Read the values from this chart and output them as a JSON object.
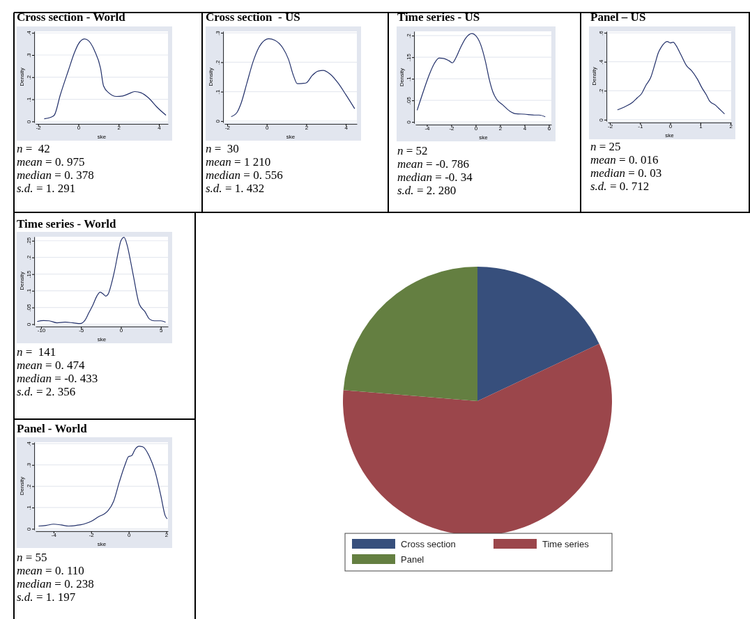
{
  "chart_data": [
    {
      "type": "line",
      "title": "Cross section - World",
      "xlabel": "ske",
      "ylabel": "Density",
      "color": "#22306a",
      "grid": "y",
      "xlim": [
        -2.13,
        4.45
      ],
      "ylim": [
        -0.005,
        0.407
      ],
      "xticks": [
        {
          "value": -2,
          "label": "-2"
        },
        0,
        2,
        4
      ],
      "yticks": [
        {
          "value": 0,
          "label": "0"
        },
        {
          "value": 0.1,
          "label": ".1"
        },
        {
          "value": 0.2,
          "label": ".2"
        },
        {
          "value": 0.3,
          "label": ".3"
        },
        {
          "value": 0.4,
          "label": ".4"
        }
      ],
      "x": [
        -1.7,
        -1.4,
        -1.2,
        -0.9,
        -0.5,
        -0.2,
        0,
        0.3,
        0.5,
        0.8,
        1.1,
        1.25,
        1.5,
        1.9,
        2.2,
        2.5,
        2.8,
        3.1,
        3.5,
        3.9,
        4.35
      ],
      "values": [
        0.012,
        0.018,
        0.028,
        0.12,
        0.23,
        0.31,
        0.35,
        0.373,
        0.365,
        0.32,
        0.24,
        0.16,
        0.13,
        0.113,
        0.115,
        0.125,
        0.135,
        0.13,
        0.105,
        0.065,
        0.028
      ],
      "annotations": [
        "n =  42",
        "mean = 0. 975",
        "median = 0. 378",
        "s.d. = 1. 291"
      ]
    },
    {
      "type": "line",
      "title": "Cross section  - US",
      "xlabel": "ske",
      "ylabel": "Density",
      "color": "#22306a",
      "grid": "y",
      "xlim": [
        -2.14,
        4.56
      ],
      "ylim": [
        -0.005,
        0.305
      ],
      "xticks": [
        {
          "value": -2,
          "label": "-2"
        },
        0,
        2,
        4
      ],
      "yticks": [
        {
          "value": 0,
          "label": "0"
        },
        {
          "value": 0.1,
          "label": ".1"
        },
        {
          "value": 0.2,
          "label": ".2"
        },
        {
          "value": 0.3,
          "label": ".3"
        }
      ],
      "x": [
        -1.8,
        -1.5,
        -1.3,
        -1,
        -0.7,
        -0.4,
        -0.1,
        0.1,
        0.4,
        0.8,
        1.1,
        1.35,
        1.55,
        1.8,
        2.0,
        2.3,
        2.6,
        2.85,
        3.2,
        3.6,
        4.0,
        4.45
      ],
      "values": [
        0.015,
        0.03,
        0.06,
        0.13,
        0.2,
        0.25,
        0.275,
        0.28,
        0.275,
        0.25,
        0.21,
        0.155,
        0.127,
        0.128,
        0.13,
        0.155,
        0.17,
        0.172,
        0.16,
        0.13,
        0.09,
        0.042
      ],
      "annotations": [
        "n =  30",
        "mean = 1 210",
        "median = 0. 556",
        "s.d. = 1. 432"
      ]
    },
    {
      "type": "line",
      "title": "Time series - US",
      "xlabel": "ske",
      "ylabel": "Density",
      "color": "#22306a",
      "grid": "y",
      "xlim": [
        -4.94,
        6.2
      ],
      "ylim": [
        -0.003,
        0.21
      ],
      "xticks": [
        {
          "value": -4,
          "label": "-4"
        },
        {
          "value": -2,
          "label": "-2"
        },
        0,
        2,
        4,
        6
      ],
      "yticks": [
        {
          "value": 0,
          "label": "0"
        },
        {
          "value": 0.05,
          "label": ".05"
        },
        {
          "value": 0.1,
          "label": ".1"
        },
        {
          "value": 0.15,
          "label": ".15"
        },
        {
          "value": 0.2,
          "label": ".2"
        }
      ],
      "x": [
        -4.8,
        -4.3,
        -3.8,
        -3.4,
        -3.0,
        -2.6,
        -2.2,
        -1.9,
        -1.6,
        -1.2,
        -0.8,
        -0.3,
        0,
        0.4,
        0.8,
        1.1,
        1.4,
        1.7,
        2.2,
        2.8,
        3.3,
        4,
        4.8,
        5.2,
        5.7
      ],
      "values": [
        0.027,
        0.07,
        0.11,
        0.135,
        0.148,
        0.147,
        0.142,
        0.137,
        0.15,
        0.175,
        0.195,
        0.205,
        0.2,
        0.18,
        0.14,
        0.1,
        0.07,
        0.053,
        0.04,
        0.025,
        0.019,
        0.018,
        0.016,
        0.016,
        0.012
      ],
      "annotations": [
        "n = 52",
        "mean = -0. 786",
        "median = -0. 34",
        "s.d. = 2. 280"
      ]
    },
    {
      "type": "line",
      "title": "Panel – US",
      "xlabel": "ske",
      "ylabel": "Density",
      "color": "#22306a",
      "grid": "y",
      "xlim": [
        -2.07,
        2.02
      ],
      "ylim": [
        -0.01,
        0.61
      ],
      "xticks": [
        {
          "value": -2,
          "label": "-2"
        },
        {
          "value": -1,
          "label": "-1"
        },
        0,
        1,
        2
      ],
      "yticks": [
        {
          "value": 0,
          "label": "0"
        },
        {
          "value": 0.2,
          "label": ".2"
        },
        {
          "value": 0.4,
          "label": ".4"
        },
        {
          "value": 0.6,
          "label": ".6"
        }
      ],
      "x": [
        -1.75,
        -1.5,
        -1.25,
        -1.1,
        -0.95,
        -0.8,
        -0.65,
        -0.5,
        -0.4,
        -0.3,
        -0.1,
        0,
        0.1,
        0.2,
        0.35,
        0.55,
        0.7,
        0.9,
        1.05,
        1.2,
        1.3,
        1.5,
        1.6,
        1.8
      ],
      "values": [
        0.068,
        0.09,
        0.12,
        0.15,
        0.18,
        0.24,
        0.29,
        0.39,
        0.46,
        0.5,
        0.54,
        0.53,
        0.535,
        0.51,
        0.45,
        0.37,
        0.34,
        0.28,
        0.22,
        0.17,
        0.13,
        0.1,
        0.08,
        0.04
      ],
      "annotations": [
        "n = 25",
        "mean = 0. 016",
        "median = 0. 03",
        "s.d. = 0. 712"
      ]
    },
    {
      "type": "line",
      "title": "Time series - World",
      "xlabel": "ske",
      "ylabel": "Density",
      "color": "#22306a",
      "grid": "y",
      "xlim": [
        -10.7,
        5.9
      ],
      "ylim": [
        -0.003,
        0.262
      ],
      "xticks": [
        {
          "value": -10,
          "label": "-10"
        },
        {
          "value": -5,
          "label": "-5"
        },
        0,
        5
      ],
      "yticks": [
        {
          "value": 0,
          "label": "0"
        },
        {
          "value": 0.05,
          "label": ".05"
        },
        {
          "value": 0.1,
          "label": ".1"
        },
        {
          "value": 0.15,
          "label": ".15"
        },
        {
          "value": 0.2,
          "label": ".2"
        },
        {
          "value": 0.25,
          "label": ".25"
        }
      ],
      "x": [
        -10.5,
        -9.7,
        -9,
        -8,
        -7,
        -6,
        -5.1,
        -4.5,
        -4,
        -3.5,
        -3,
        -2.6,
        -2.2,
        -1.9,
        -1.6,
        -1.2,
        -0.8,
        -0.3,
        0,
        0.4,
        0.8,
        1.2,
        1.6,
        2.3,
        3,
        3.6,
        4.2,
        5,
        5.6
      ],
      "values": [
        0.008,
        0.011,
        0.01,
        0.004,
        0.006,
        0.004,
        0.002,
        0.012,
        0.035,
        0.058,
        0.085,
        0.096,
        0.09,
        0.084,
        0.09,
        0.12,
        0.16,
        0.22,
        0.25,
        0.26,
        0.235,
        0.19,
        0.14,
        0.06,
        0.038,
        0.015,
        0.01,
        0.01,
        0.006
      ],
      "annotations": [
        "n =  141",
        "mean = 0. 474",
        "median = -0. 433",
        "s.d. = 2. 356"
      ]
    },
    {
      "type": "line",
      "title": "Panel - World",
      "xlabel": "ske",
      "ylabel": "Density",
      "color": "#22306a",
      "grid": "y",
      "xlim": [
        -4.96,
        2.09
      ],
      "ylim": [
        -0.005,
        0.407
      ],
      "xticks": [
        {
          "value": -4,
          "label": "-4"
        },
        {
          "value": -2,
          "label": "-2"
        },
        0,
        2
      ],
      "yticks": [
        {
          "value": 0,
          "label": "0"
        },
        {
          "value": 0.1,
          "label": ".1"
        },
        {
          "value": 0.2,
          "label": ".2"
        },
        {
          "value": 0.3,
          "label": ".3"
        },
        {
          "value": 0.4,
          "label": ".4"
        }
      ],
      "x": [
        -4.8,
        -4.4,
        -4,
        -3.6,
        -3.2,
        -2.8,
        -2.4,
        -2,
        -1.6,
        -1.3,
        -1.1,
        -0.8,
        -0.5,
        -0.2,
        0,
        0.15,
        0.35,
        0.55,
        0.75,
        1.1,
        1.4,
        1.7,
        1.95,
        2.05
      ],
      "values": [
        0.013,
        0.016,
        0.022,
        0.018,
        0.013,
        0.016,
        0.022,
        0.035,
        0.057,
        0.07,
        0.085,
        0.13,
        0.22,
        0.3,
        0.34,
        0.343,
        0.375,
        0.388,
        0.385,
        0.34,
        0.27,
        0.16,
        0.06,
        0.047
      ],
      "annotations": [
        "n = 55",
        "mean = 0. 110",
        "median = 0. 238",
        "s.d. = 1. 197"
      ]
    },
    {
      "type": "pie",
      "categories": [
        "Cross section",
        "Time series",
        "Panel"
      ],
      "values": [
        18,
        58.3,
        23.7
      ],
      "colors": [
        "#374f7c",
        "#9b464b",
        "#647f41"
      ],
      "legend": "bottom"
    }
  ]
}
